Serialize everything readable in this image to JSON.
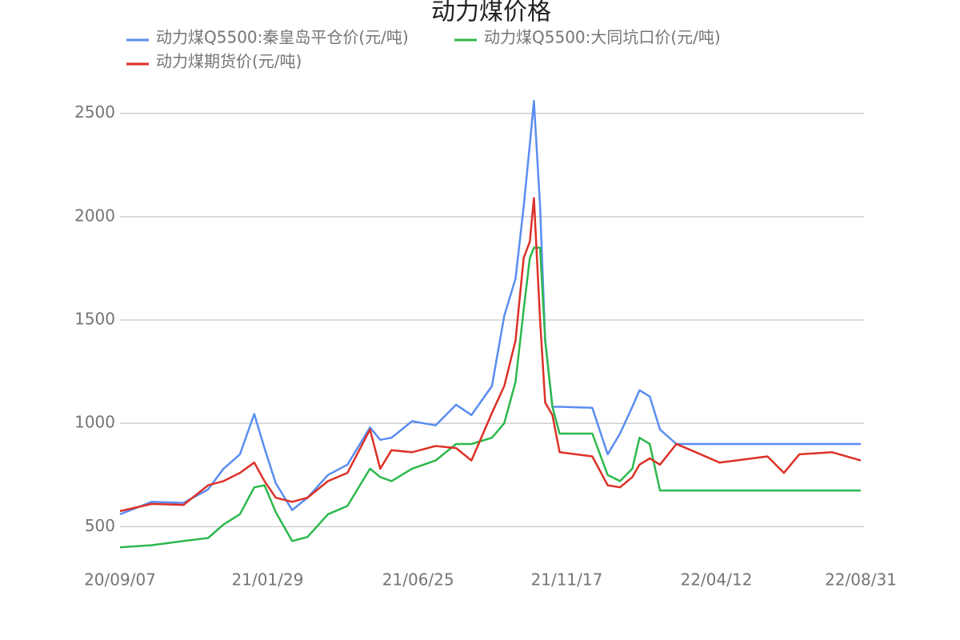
{
  "chart_data": {
    "type": "line",
    "title": "动力煤价格",
    "x": [
      "20/09/07",
      "20/10/08",
      "20/11/08",
      "20/12/02",
      "20/12/17",
      "21/01/02",
      "21/01/16",
      "21/01/26",
      "21/02/06",
      "21/02/22",
      "21/03/09",
      "21/03/29",
      "21/04/17",
      "21/05/09",
      "21/05/19",
      "21/05/30",
      "21/06/19",
      "21/07/12",
      "21/08/01",
      "21/08/16",
      "21/09/05",
      "21/09/17",
      "21/09/28",
      "21/10/06",
      "21/10/12",
      "21/10/16",
      "21/10/22",
      "21/10/27",
      "21/11/03",
      "21/11/10",
      "21/12/12",
      "21/12/27",
      "22/01/08",
      "22/01/20",
      "22/01/27",
      "22/02/06",
      "22/02/16",
      "22/03/04",
      "22/03/23",
      "22/04/15",
      "22/06/01",
      "22/06/17",
      "22/07/02",
      "22/08/03",
      "22/08/31"
    ],
    "series": [
      {
        "name": "动力煤Q5500:秦皇岛平仓价(元/吨)",
        "color": "#5a8df0",
        "values": [
          560,
          620,
          615,
          680,
          780,
          850,
          1045,
          880,
          710,
          580,
          640,
          750,
          800,
          980,
          920,
          930,
          1010,
          990,
          1090,
          1040,
          1180,
          1520,
          1700,
          2050,
          2350,
          2560,
          2050,
          1400,
          1080,
          1080,
          1075,
          850,
          950,
          1080,
          1160,
          1130,
          970,
          900,
          900,
          900,
          900,
          900,
          900,
          900,
          900
        ]
      },
      {
        "name": "动力煤Q5500:大同坑口价(元/吨)",
        "color": "#2db84d",
        "values": [
          400,
          410,
          430,
          445,
          510,
          560,
          690,
          700,
          570,
          430,
          450,
          560,
          600,
          780,
          740,
          720,
          780,
          820,
          900,
          900,
          930,
          1000,
          1200,
          1550,
          1800,
          1850,
          1850,
          1400,
          1080,
          950,
          950,
          750,
          720,
          780,
          930,
          900,
          675,
          675,
          675,
          675,
          675,
          675,
          675,
          675,
          675
        ]
      },
      {
        "name": "动力煤期货价(元/吨)",
        "color": "#dc3127",
        "values": [
          575,
          610,
          605,
          700,
          720,
          760,
          810,
          720,
          640,
          620,
          640,
          720,
          760,
          970,
          780,
          870,
          860,
          890,
          880,
          820,
          1050,
          1180,
          1400,
          1800,
          1880,
          2090,
          1500,
          1100,
          1040,
          860,
          840,
          700,
          690,
          740,
          800,
          830,
          800,
          900,
          860,
          810,
          840,
          760,
          850,
          860,
          820
        ]
      }
    ],
    "xlim": [
      "20/09/07",
      "22/08/31"
    ],
    "xticks": [
      "20/09/07",
      "21/01/29",
      "21/06/25",
      "21/11/17",
      "22/04/12",
      "22/08/31"
    ],
    "ylim": [
      350,
      2650
    ],
    "yticks": [
      500,
      1000,
      1500,
      2000,
      2500
    ],
    "grid": true,
    "legend": "top"
  }
}
